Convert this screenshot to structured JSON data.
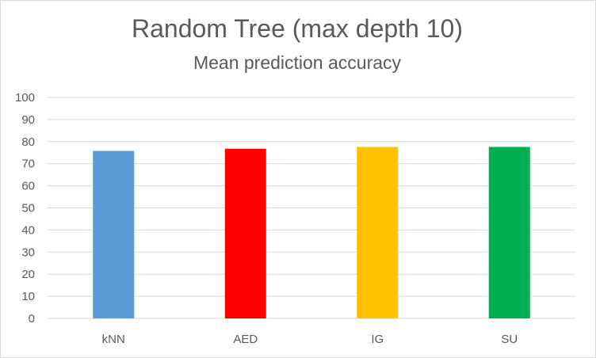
{
  "chart_data": {
    "type": "bar",
    "title": "Random Tree (max depth 10)",
    "subtitle": "Mean prediction accuracy",
    "xlabel": "",
    "ylabel": "",
    "categories": [
      "kNN",
      "AED",
      "IG",
      "SU"
    ],
    "values": [
      75.8,
      76.8,
      77.6,
      77.6
    ],
    "colors": [
      "#5b9bd5",
      "#ff0000",
      "#ffc000",
      "#00b050"
    ],
    "ylim": [
      0,
      100
    ],
    "yticks": [
      0,
      10,
      20,
      30,
      40,
      50,
      60,
      70,
      80,
      90,
      100
    ],
    "grid": true,
    "legend": "none"
  }
}
